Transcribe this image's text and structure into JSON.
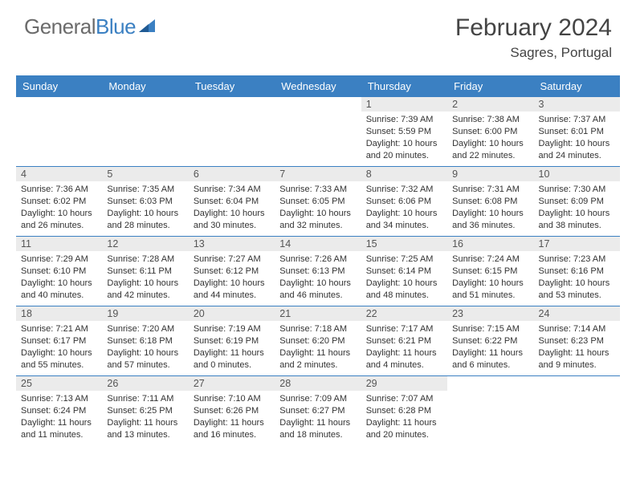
{
  "logo": {
    "part1": "General",
    "part2": "Blue"
  },
  "header": {
    "month": "February 2024",
    "location": "Sagres, Portugal"
  },
  "colors": {
    "accent": "#3b80c2",
    "header_bg": "#3b80c2",
    "daynum_bg": "#ebebeb",
    "text": "#444444",
    "body_text": "#333333"
  },
  "day_names": [
    "Sunday",
    "Monday",
    "Tuesday",
    "Wednesday",
    "Thursday",
    "Friday",
    "Saturday"
  ],
  "weeks": [
    [
      null,
      null,
      null,
      null,
      {
        "n": "1",
        "sunrise": "Sunrise: 7:39 AM",
        "sunset": "Sunset: 5:59 PM",
        "daylight": "Daylight: 10 hours and 20 minutes."
      },
      {
        "n": "2",
        "sunrise": "Sunrise: 7:38 AM",
        "sunset": "Sunset: 6:00 PM",
        "daylight": "Daylight: 10 hours and 22 minutes."
      },
      {
        "n": "3",
        "sunrise": "Sunrise: 7:37 AM",
        "sunset": "Sunset: 6:01 PM",
        "daylight": "Daylight: 10 hours and 24 minutes."
      }
    ],
    [
      {
        "n": "4",
        "sunrise": "Sunrise: 7:36 AM",
        "sunset": "Sunset: 6:02 PM",
        "daylight": "Daylight: 10 hours and 26 minutes."
      },
      {
        "n": "5",
        "sunrise": "Sunrise: 7:35 AM",
        "sunset": "Sunset: 6:03 PM",
        "daylight": "Daylight: 10 hours and 28 minutes."
      },
      {
        "n": "6",
        "sunrise": "Sunrise: 7:34 AM",
        "sunset": "Sunset: 6:04 PM",
        "daylight": "Daylight: 10 hours and 30 minutes."
      },
      {
        "n": "7",
        "sunrise": "Sunrise: 7:33 AM",
        "sunset": "Sunset: 6:05 PM",
        "daylight": "Daylight: 10 hours and 32 minutes."
      },
      {
        "n": "8",
        "sunrise": "Sunrise: 7:32 AM",
        "sunset": "Sunset: 6:06 PM",
        "daylight": "Daylight: 10 hours and 34 minutes."
      },
      {
        "n": "9",
        "sunrise": "Sunrise: 7:31 AM",
        "sunset": "Sunset: 6:08 PM",
        "daylight": "Daylight: 10 hours and 36 minutes."
      },
      {
        "n": "10",
        "sunrise": "Sunrise: 7:30 AM",
        "sunset": "Sunset: 6:09 PM",
        "daylight": "Daylight: 10 hours and 38 minutes."
      }
    ],
    [
      {
        "n": "11",
        "sunrise": "Sunrise: 7:29 AM",
        "sunset": "Sunset: 6:10 PM",
        "daylight": "Daylight: 10 hours and 40 minutes."
      },
      {
        "n": "12",
        "sunrise": "Sunrise: 7:28 AM",
        "sunset": "Sunset: 6:11 PM",
        "daylight": "Daylight: 10 hours and 42 minutes."
      },
      {
        "n": "13",
        "sunrise": "Sunrise: 7:27 AM",
        "sunset": "Sunset: 6:12 PM",
        "daylight": "Daylight: 10 hours and 44 minutes."
      },
      {
        "n": "14",
        "sunrise": "Sunrise: 7:26 AM",
        "sunset": "Sunset: 6:13 PM",
        "daylight": "Daylight: 10 hours and 46 minutes."
      },
      {
        "n": "15",
        "sunrise": "Sunrise: 7:25 AM",
        "sunset": "Sunset: 6:14 PM",
        "daylight": "Daylight: 10 hours and 48 minutes."
      },
      {
        "n": "16",
        "sunrise": "Sunrise: 7:24 AM",
        "sunset": "Sunset: 6:15 PM",
        "daylight": "Daylight: 10 hours and 51 minutes."
      },
      {
        "n": "17",
        "sunrise": "Sunrise: 7:23 AM",
        "sunset": "Sunset: 6:16 PM",
        "daylight": "Daylight: 10 hours and 53 minutes."
      }
    ],
    [
      {
        "n": "18",
        "sunrise": "Sunrise: 7:21 AM",
        "sunset": "Sunset: 6:17 PM",
        "daylight": "Daylight: 10 hours and 55 minutes."
      },
      {
        "n": "19",
        "sunrise": "Sunrise: 7:20 AM",
        "sunset": "Sunset: 6:18 PM",
        "daylight": "Daylight: 10 hours and 57 minutes."
      },
      {
        "n": "20",
        "sunrise": "Sunrise: 7:19 AM",
        "sunset": "Sunset: 6:19 PM",
        "daylight": "Daylight: 11 hours and 0 minutes."
      },
      {
        "n": "21",
        "sunrise": "Sunrise: 7:18 AM",
        "sunset": "Sunset: 6:20 PM",
        "daylight": "Daylight: 11 hours and 2 minutes."
      },
      {
        "n": "22",
        "sunrise": "Sunrise: 7:17 AM",
        "sunset": "Sunset: 6:21 PM",
        "daylight": "Daylight: 11 hours and 4 minutes."
      },
      {
        "n": "23",
        "sunrise": "Sunrise: 7:15 AM",
        "sunset": "Sunset: 6:22 PM",
        "daylight": "Daylight: 11 hours and 6 minutes."
      },
      {
        "n": "24",
        "sunrise": "Sunrise: 7:14 AM",
        "sunset": "Sunset: 6:23 PM",
        "daylight": "Daylight: 11 hours and 9 minutes."
      }
    ],
    [
      {
        "n": "25",
        "sunrise": "Sunrise: 7:13 AM",
        "sunset": "Sunset: 6:24 PM",
        "daylight": "Daylight: 11 hours and 11 minutes."
      },
      {
        "n": "26",
        "sunrise": "Sunrise: 7:11 AM",
        "sunset": "Sunset: 6:25 PM",
        "daylight": "Daylight: 11 hours and 13 minutes."
      },
      {
        "n": "27",
        "sunrise": "Sunrise: 7:10 AM",
        "sunset": "Sunset: 6:26 PM",
        "daylight": "Daylight: 11 hours and 16 minutes."
      },
      {
        "n": "28",
        "sunrise": "Sunrise: 7:09 AM",
        "sunset": "Sunset: 6:27 PM",
        "daylight": "Daylight: 11 hours and 18 minutes."
      },
      {
        "n": "29",
        "sunrise": "Sunrise: 7:07 AM",
        "sunset": "Sunset: 6:28 PM",
        "daylight": "Daylight: 11 hours and 20 minutes."
      },
      null,
      null
    ]
  ]
}
